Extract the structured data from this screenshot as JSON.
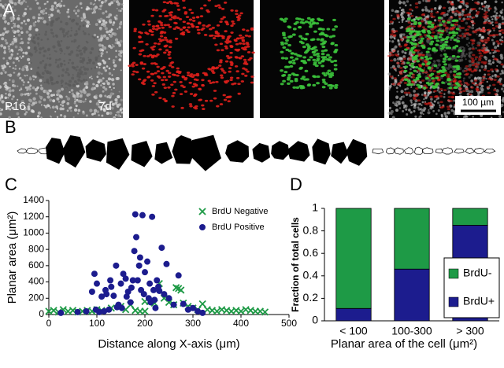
{
  "figure": {
    "panels": [
      "A",
      "B",
      "C",
      "D"
    ],
    "image_labels": {
      "age": "P16",
      "time": "7d",
      "scale_bar": "100 µm"
    }
  },
  "chart_data": [
    {
      "type": "scatter",
      "x_label": "Distance along X-axis (μm)",
      "y_label": "Planar area (μm²)",
      "xlim": [
        0,
        500
      ],
      "xticks": [
        0,
        100,
        200,
        300,
        400,
        500
      ],
      "ylim": [
        0,
        1400
      ],
      "yticks": [
        0,
        200,
        400,
        600,
        800,
        1000,
        1200,
        1400
      ],
      "legend": "upper right",
      "grid": false,
      "series": [
        {
          "name": "BrdU Negative",
          "color": "#1e9a46",
          "marker": "x",
          "x": [
            0,
            10,
            20,
            30,
            40,
            50,
            60,
            70,
            80,
            90,
            100,
            110,
            130,
            150,
            170,
            190,
            200,
            210,
            230,
            240,
            250,
            260,
            270,
            275,
            280,
            290,
            300,
            310,
            320,
            330,
            340,
            350,
            360,
            370,
            380,
            390,
            400,
            410,
            420,
            430,
            440,
            450,
            160,
            180,
            200,
            220,
            265
          ],
          "values": [
            40,
            50,
            30,
            60,
            40,
            50,
            30,
            40,
            50,
            40,
            60,
            50,
            80,
            100,
            120,
            40,
            40,
            160,
            380,
            200,
            150,
            120,
            320,
            300,
            140,
            100,
            80,
            60,
            130,
            60,
            50,
            40,
            60,
            50,
            40,
            50,
            40,
            60,
            50,
            40,
            40,
            30,
            60,
            50,
            160,
            140,
            330
          ]
        },
        {
          "name": "BrdU Positive",
          "color": "#1c1c8e",
          "marker": "circle",
          "x": [
            25,
            60,
            78,
            90,
            95,
            98,
            100,
            105,
            110,
            115,
            118,
            120,
            125,
            128,
            130,
            135,
            140,
            142,
            145,
            150,
            152,
            155,
            160,
            162,
            165,
            170,
            172,
            175,
            178,
            180,
            182,
            185,
            188,
            190,
            192,
            195,
            198,
            200,
            205,
            208,
            210,
            212,
            215,
            218,
            220,
            222,
            225,
            228,
            230,
            235,
            240,
            245,
            250,
            260,
            270,
            280,
            290,
            300,
            310,
            320
          ],
          "values": [
            20,
            30,
            40,
            280,
            500,
            60,
            380,
            30,
            220,
            40,
            300,
            250,
            60,
            420,
            340,
            230,
            600,
            90,
            120,
            380,
            80,
            500,
            440,
            220,
            280,
            150,
            330,
            420,
            780,
            1230,
            950,
            420,
            600,
            700,
            300,
            1220,
            250,
            520,
            650,
            200,
            380,
            150,
            1200,
            300,
            180,
            80,
            420,
            340,
            290,
            820,
            250,
            620,
            200,
            120,
            480,
            130,
            60,
            80,
            40,
            20
          ]
        }
      ]
    },
    {
      "type": "bar",
      "stacked": true,
      "x_label": "Planar area of the cell (μm²)",
      "y_label": "Fraction of total cells",
      "categories": [
        "< 100",
        "100-300",
        "> 300"
      ],
      "ylim": [
        0,
        1
      ],
      "yticks": [
        0,
        0.2,
        0.4,
        0.6,
        0.8,
        1
      ],
      "legend": "lower right",
      "series": [
        {
          "name": "BrdU+",
          "color": "#1c1c8e",
          "values": [
            0.11,
            0.46,
            0.85
          ]
        },
        {
          "name": "BrdU-",
          "color": "#1e9a46",
          "values": [
            0.89,
            0.54,
            0.15
          ]
        }
      ]
    }
  ]
}
